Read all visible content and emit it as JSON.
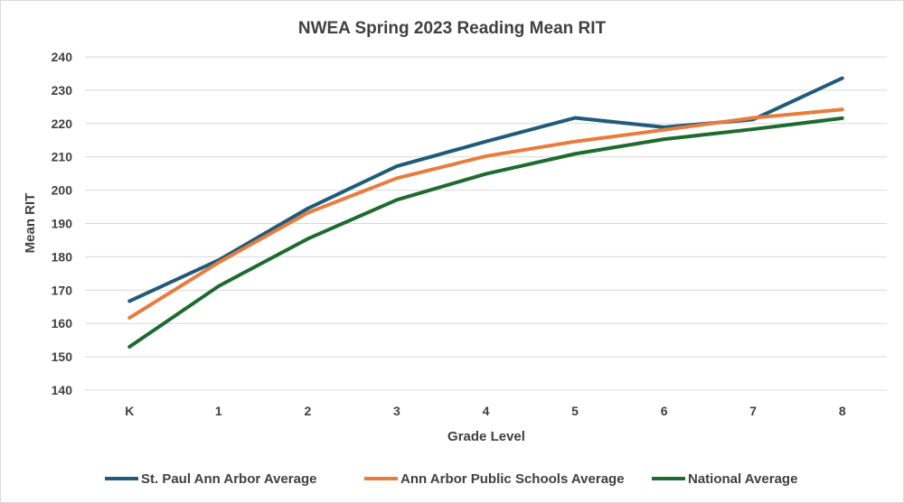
{
  "chart_data": {
    "type": "line",
    "title": "NWEA Spring 2023 Reading Mean RIT",
    "xlabel": "Grade Level",
    "ylabel": "Mean RIT",
    "categories": [
      "K",
      "1",
      "2",
      "3",
      "4",
      "5",
      "6",
      "7",
      "8"
    ],
    "ylim": [
      140,
      240
    ],
    "yticks": [
      140,
      150,
      160,
      170,
      180,
      190,
      200,
      210,
      220,
      230,
      240
    ],
    "grid": true,
    "legend_position": "bottom",
    "series": [
      {
        "name": "St. Paul Ann Arbor Average",
        "color": "#1f5b7a",
        "values": [
          166.7,
          179.0,
          194.5,
          207.2,
          214.6,
          221.7,
          218.9,
          221.2,
          233.6
        ]
      },
      {
        "name": "Ann Arbor Public Schools Average",
        "color": "#e97b3c",
        "values": [
          161.7,
          178.3,
          193.2,
          203.6,
          210.2,
          214.6,
          218.1,
          221.7,
          224.2
        ]
      },
      {
        "name": "National Average",
        "color": "#1e6b2e",
        "values": [
          153.0,
          171.2,
          185.4,
          197.1,
          204.9,
          210.9,
          215.3,
          218.3,
          221.6
        ]
      }
    ]
  }
}
